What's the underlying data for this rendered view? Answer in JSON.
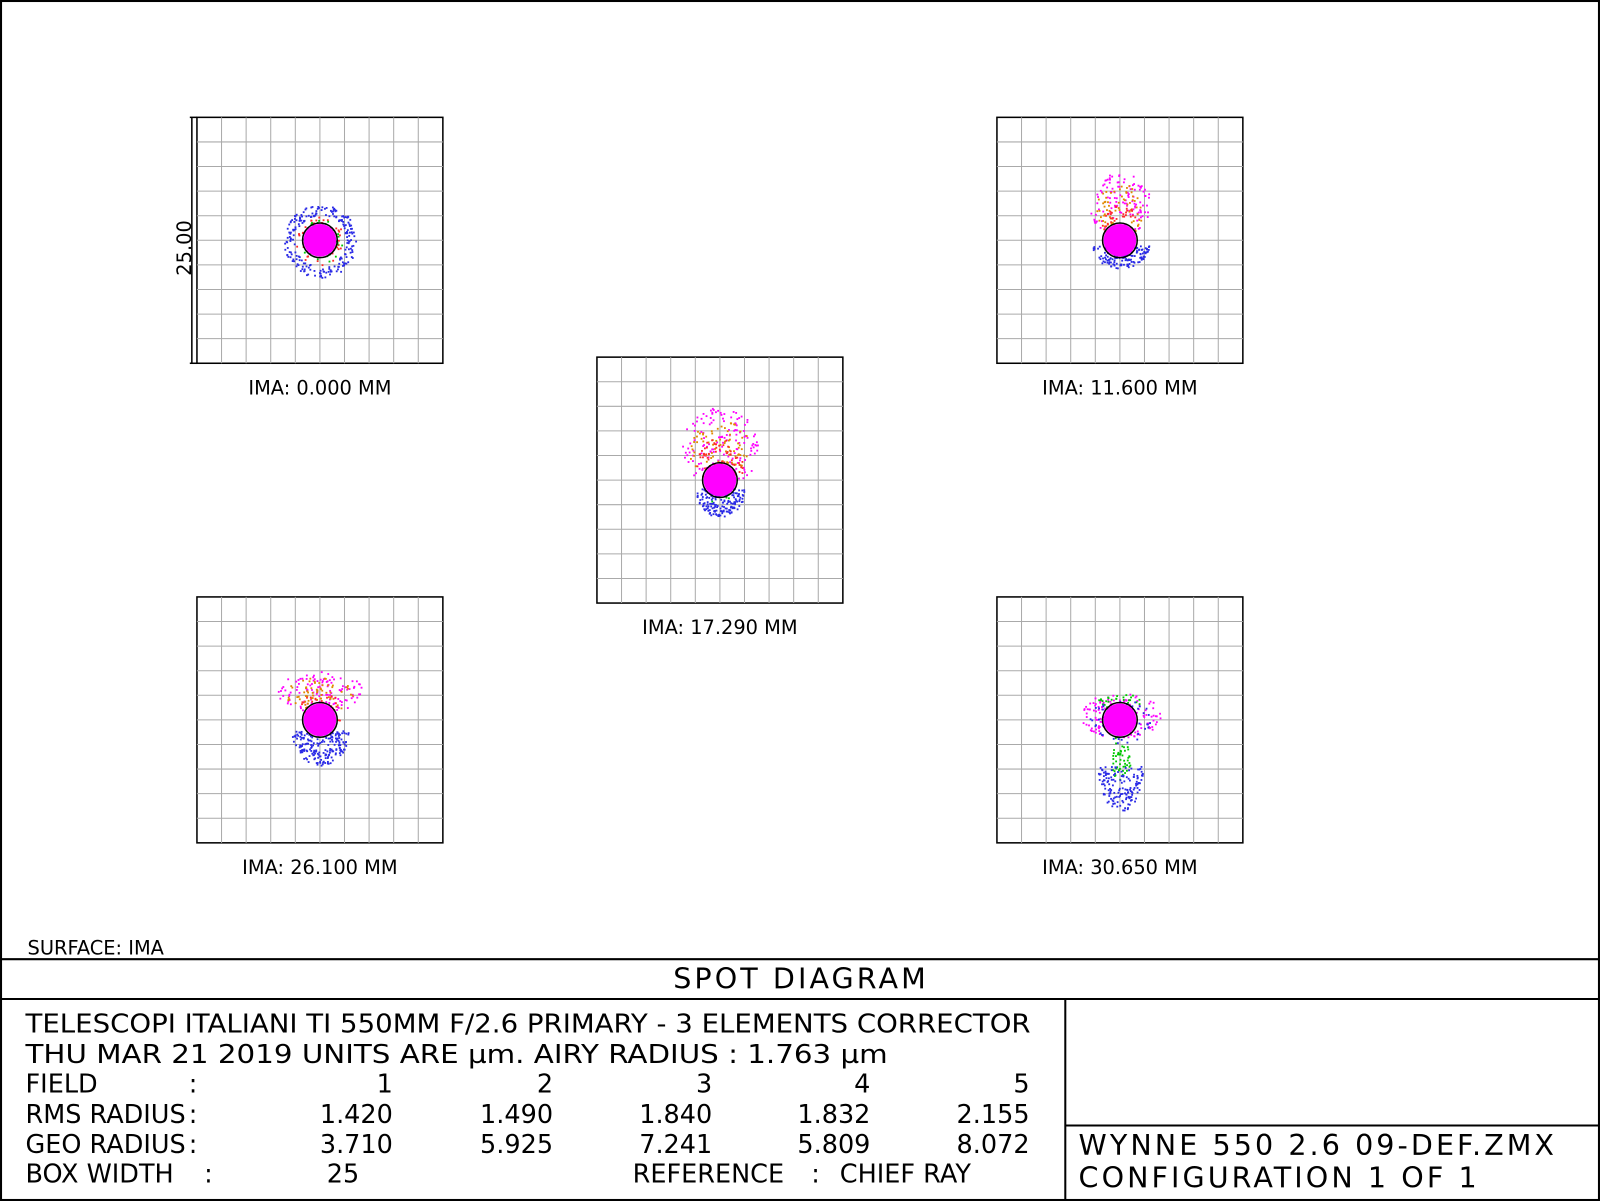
{
  "plot": {
    "scale_label": "25.00",
    "surface": "SURFACE: IMA",
    "panels": [
      {
        "label": "IMA: 0.000 MM"
      },
      {
        "label": "IMA: 11.600 MM"
      },
      {
        "label": "IMA: 17.290 MM"
      },
      {
        "label": "IMA: 26.100 MM"
      },
      {
        "label": "IMA: 30.650 MM"
      }
    ]
  },
  "footer": {
    "title": "SPOT DIAGRAM",
    "lines": [
      "TELESCOPI ITALIANI TI  550MM  F/2.6 PRIMARY -  3 ELEMENTS CORRECTOR",
      "THU MAR 21 2019  UNITS ARE µm.  AIRY RADIUS : 1.763 µm"
    ],
    "table": [
      {
        "label": "FIELD",
        "sep": ":",
        "values": [
          "1",
          "2",
          "3",
          "4",
          "5"
        ]
      },
      {
        "label": "RMS RADIUS",
        "sep": ":",
        "values": [
          "1.420",
          "1.490",
          "1.840",
          "1.832",
          "2.155"
        ]
      },
      {
        "label": "GEO RADIUS",
        "sep": ":",
        "values": [
          "3.710",
          "5.925",
          "7.241",
          "5.809",
          "8.072"
        ]
      }
    ],
    "box_width": {
      "label": "BOX WIDTH",
      "sep": ":",
      "value": "25"
    },
    "reference": {
      "label": "REFERENCE",
      "sep": ":",
      "value": "CHIEF RAY"
    },
    "file": [
      "WYNNE 550 2.6 09-DEF.ZMX",
      "CONFIGURATION 1 OF 1"
    ]
  }
}
